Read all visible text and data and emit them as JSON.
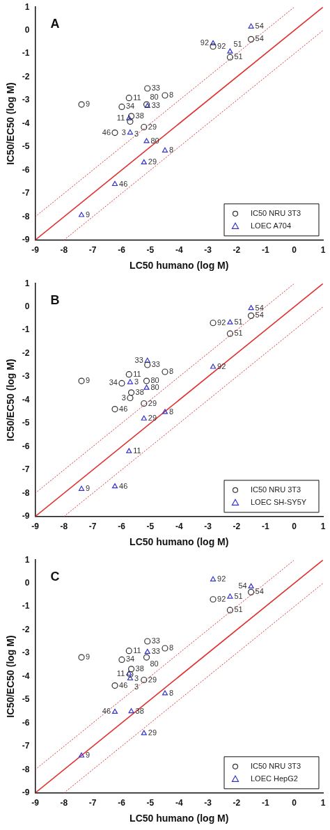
{
  "chart_data": [
    {
      "type": "scatter",
      "title": "A",
      "xlabel": "LC50 humano (log M)",
      "ylabel": "IC50/EC50 (log M)",
      "xlim": [
        -9,
        1
      ],
      "ylim": [
        -9,
        1
      ],
      "xticks": [
        -9,
        -8,
        -7,
        -6,
        -5,
        -4,
        -3,
        -2,
        -1,
        0,
        1
      ],
      "yticks": [
        -9,
        -8,
        -7,
        -6,
        -5,
        -4,
        -3,
        -2,
        -1,
        0,
        1
      ],
      "grid": false,
      "legend": "bottom right",
      "series": [
        {
          "name": "IC50 NRU 3T3",
          "color": "#333333",
          "marker": "circle",
          "x": [
            -7.39,
            -5.99,
            -5.74,
            -5.1,
            -4.49,
            -5.13,
            -5.66,
            -5.7,
            -5.22,
            -6.23,
            -2.82,
            -2.23,
            -1.5
          ],
          "values": [
            -3.18,
            -3.28,
            -2.9,
            -2.49,
            -2.79,
            -3.18,
            -3.68,
            -3.91,
            -4.15,
            -4.39,
            -0.69,
            -1.15,
            -0.38
          ]
        },
        {
          "name": "LOEC A704",
          "color": "#3333cc",
          "marker": "triangle",
          "x": [
            -1.5,
            -2.82,
            -2.23,
            -5.1,
            -5.74,
            -5.7,
            -5.13,
            -4.49,
            -5.22,
            -6.23,
            -7.39
          ],
          "values": [
            0.16,
            -0.56,
            -0.91,
            -3.25,
            -3.78,
            -4.39,
            -4.76,
            -5.16,
            -5.67,
            -6.6,
            -7.93
          ]
        },
        {
          "type": "line",
          "color": "#e03030",
          "marker": "none",
          "line_style": "solid",
          "x": [
            -9,
            1
          ],
          "values": [
            -9,
            1
          ]
        },
        {
          "type": "line",
          "color": "#e03030",
          "marker": "none",
          "line_style": "dotted",
          "x": [
            -9,
            0
          ],
          "values": [
            -8,
            1
          ]
        },
        {
          "type": "line",
          "color": "#e03030",
          "marker": "none",
          "line_style": "dotted",
          "x": [
            -8,
            1
          ],
          "values": [
            -9,
            0
          ]
        }
      ],
      "annotations": [
        {
          "text": "9",
          "x": -7.39,
          "y": -3.18
        },
        {
          "text": "34",
          "x": -5.99,
          "y": -3.28
        },
        {
          "text": "11",
          "x": -5.74,
          "y": -2.9
        },
        {
          "text": "33",
          "x": -5.1,
          "y": -2.49
        },
        {
          "text": "8",
          "x": -4.49,
          "y": -2.79
        },
        {
          "text": "80",
          "x": -5.13,
          "y": -3.18
        },
        {
          "text": "38",
          "x": -5.66,
          "y": -3.68
        },
        {
          "text": "3",
          "x": -5.7,
          "y": -3.91
        },
        {
          "text": "29",
          "x": -5.22,
          "y": -4.15
        },
        {
          "text": "46",
          "x": -6.23,
          "y": -4.39
        },
        {
          "text": "92",
          "x": -2.82,
          "y": -0.69
        },
        {
          "text": "51",
          "x": -2.23,
          "y": -1.15
        },
        {
          "text": "54",
          "x": -1.5,
          "y": -0.38
        },
        {
          "text": "54",
          "x": -1.5,
          "y": 0.16
        },
        {
          "text": "92",
          "x": -2.82,
          "y": -0.56
        },
        {
          "text": "51",
          "x": -2.23,
          "y": -0.91
        },
        {
          "text": "33",
          "x": -5.1,
          "y": -3.25
        },
        {
          "text": "11",
          "x": -5.74,
          "y": -3.78
        },
        {
          "text": "3",
          "x": -5.7,
          "y": -4.39
        },
        {
          "text": "80",
          "x": -5.13,
          "y": -4.76
        },
        {
          "text": "8",
          "x": -4.49,
          "y": -5.16
        },
        {
          "text": "29",
          "x": -5.22,
          "y": -5.67
        },
        {
          "text": "46",
          "x": -6.23,
          "y": -6.6
        },
        {
          "text": "9",
          "x": -7.39,
          "y": -7.93
        }
      ]
    },
    {
      "type": "scatter",
      "title": "B",
      "xlabel": "LC50 humano (log M)",
      "ylabel": "IC50/EC50 (log M)",
      "xlim": [
        -9,
        1
      ],
      "ylim": [
        -9,
        1
      ],
      "xticks": [
        -9,
        -8,
        -7,
        -6,
        -5,
        -4,
        -3,
        -2,
        -1,
        0,
        1
      ],
      "yticks": [
        -9,
        -8,
        -7,
        -6,
        -5,
        -4,
        -3,
        -2,
        -1,
        0,
        1
      ],
      "grid": false,
      "legend": "bottom right",
      "series": [
        {
          "name": "IC50 NRU 3T3",
          "color": "#333333",
          "marker": "circle",
          "x": [
            -7.39,
            -5.99,
            -5.74,
            -5.1,
            -4.49,
            -5.13,
            -5.66,
            -5.7,
            -5.22,
            -6.23,
            -2.82,
            -2.23,
            -1.5
          ],
          "values": [
            -3.18,
            -3.28,
            -2.9,
            -2.49,
            -2.79,
            -3.18,
            -3.68,
            -3.91,
            -4.15,
            -4.39,
            -0.69,
            -1.15,
            -0.38
          ]
        },
        {
          "name": "LOEC SH-SY5Y",
          "color": "#3333cc",
          "marker": "triangle",
          "x": [
            -1.5,
            -2.23,
            -2.82,
            -5.1,
            -5.7,
            -5.13,
            -4.49,
            -5.22,
            -5.74,
            -7.39,
            -6.23
          ],
          "values": [
            -0.06,
            -0.67,
            -2.58,
            -2.32,
            -3.24,
            -3.48,
            -4.52,
            -4.8,
            -6.2,
            -7.82,
            -7.71
          ]
        },
        {
          "type": "line",
          "color": "#e03030",
          "marker": "none",
          "line_style": "solid",
          "x": [
            -9,
            1
          ],
          "values": [
            -9,
            1
          ]
        },
        {
          "type": "line",
          "color": "#e03030",
          "marker": "none",
          "line_style": "dotted",
          "x": [
            -9,
            0
          ],
          "values": [
            -8,
            1
          ]
        },
        {
          "type": "line",
          "color": "#e03030",
          "marker": "none",
          "line_style": "dotted",
          "x": [
            -8,
            1
          ],
          "values": [
            -9,
            0
          ]
        }
      ],
      "annotations": [
        {
          "text": "9",
          "x": -7.39,
          "y": -3.18
        },
        {
          "text": "34",
          "x": -5.99,
          "y": -3.28
        },
        {
          "text": "11",
          "x": -5.74,
          "y": -2.9
        },
        {
          "text": "33",
          "x": -5.1,
          "y": -2.49
        },
        {
          "text": "8",
          "x": -4.49,
          "y": -2.79
        },
        {
          "text": "80",
          "x": -5.13,
          "y": -3.18
        },
        {
          "text": "38",
          "x": -5.66,
          "y": -3.68
        },
        {
          "text": "3",
          "x": -5.7,
          "y": -3.91
        },
        {
          "text": "29",
          "x": -5.22,
          "y": -4.15
        },
        {
          "text": "46",
          "x": -6.23,
          "y": -4.39
        },
        {
          "text": "92",
          "x": -2.82,
          "y": -0.69
        },
        {
          "text": "51",
          "x": -2.23,
          "y": -1.15
        },
        {
          "text": "54",
          "x": -1.5,
          "y": -0.38
        },
        {
          "text": "54",
          "x": -1.5,
          "y": -0.06
        },
        {
          "text": "51",
          "x": -2.23,
          "y": -0.67
        },
        {
          "text": "92",
          "x": -2.82,
          "y": -2.58
        },
        {
          "text": "33",
          "x": -5.1,
          "y": -2.32
        },
        {
          "text": "3",
          "x": -5.7,
          "y": -3.24
        },
        {
          "text": "80",
          "x": -5.13,
          "y": -3.48
        },
        {
          "text": "8",
          "x": -4.49,
          "y": -4.52
        },
        {
          "text": "29",
          "x": -5.22,
          "y": -4.8
        },
        {
          "text": "11",
          "x": -5.74,
          "y": -6.2
        },
        {
          "text": "9",
          "x": -7.39,
          "y": -7.82
        },
        {
          "text": "46",
          "x": -6.23,
          "y": -7.71
        }
      ]
    },
    {
      "type": "scatter",
      "title": "C",
      "xlabel": "LC50 humano (log M)",
      "ylabel": "IC50/EC50 (log M)",
      "xlim": [
        -9,
        1
      ],
      "ylim": [
        -9,
        1
      ],
      "xticks": [
        -9,
        -8,
        -7,
        -6,
        -5,
        -4,
        -3,
        -2,
        -1,
        0,
        1
      ],
      "yticks": [
        -9,
        -8,
        -7,
        -6,
        -5,
        -4,
        -3,
        -2,
        -1,
        0,
        1
      ],
      "grid": false,
      "legend": "bottom right",
      "series": [
        {
          "name": "IC50 NRU 3T3",
          "color": "#333333",
          "marker": "circle",
          "x": [
            -7.39,
            -5.99,
            -5.74,
            -5.1,
            -4.49,
            -5.13,
            -5.66,
            -5.7,
            -5.22,
            -6.23,
            -2.82,
            -2.23,
            -1.5
          ],
          "values": [
            -3.18,
            -3.28,
            -2.9,
            -2.49,
            -2.79,
            -3.18,
            -3.68,
            -3.91,
            -4.15,
            -4.39,
            -0.69,
            -1.15,
            -0.38
          ]
        },
        {
          "name": "LOEC HepG2",
          "color": "#3333cc",
          "marker": "triangle",
          "x": [
            -2.82,
            -1.5,
            -2.23,
            -5.1,
            -5.74,
            -5.7,
            -4.49,
            -6.23,
            -5.66,
            -5.22,
            -7.39
          ],
          "values": [
            0.16,
            -0.14,
            -0.58,
            -2.95,
            -3.88,
            -4.09,
            -4.73,
            -5.52,
            -5.5,
            -6.44,
            -7.4
          ]
        },
        {
          "type": "line",
          "color": "#e03030",
          "marker": "none",
          "line_style": "solid",
          "x": [
            -9,
            1
          ],
          "values": [
            -9,
            1
          ]
        },
        {
          "type": "line",
          "color": "#e03030",
          "marker": "none",
          "line_style": "dotted",
          "x": [
            -9,
            0
          ],
          "values": [
            -8,
            1
          ]
        },
        {
          "type": "line",
          "color": "#e03030",
          "marker": "none",
          "line_style": "dotted",
          "x": [
            -8,
            1
          ],
          "values": [
            -9,
            0
          ]
        }
      ],
      "annotations": [
        {
          "text": "9",
          "x": -7.39,
          "y": -3.18
        },
        {
          "text": "34",
          "x": -5.99,
          "y": -3.28
        },
        {
          "text": "11",
          "x": -5.74,
          "y": -2.9
        },
        {
          "text": "33",
          "x": -5.1,
          "y": -2.49
        },
        {
          "text": "8",
          "x": -4.49,
          "y": -2.79
        },
        {
          "text": "80",
          "x": -5.13,
          "y": -3.18
        },
        {
          "text": "38",
          "x": -5.66,
          "y": -3.68
        },
        {
          "text": "3",
          "x": -5.7,
          "y": -3.91
        },
        {
          "text": "29",
          "x": -5.22,
          "y": -4.15
        },
        {
          "text": "46",
          "x": -6.23,
          "y": -4.39
        },
        {
          "text": "92",
          "x": -2.82,
          "y": -0.69
        },
        {
          "text": "51",
          "x": -2.23,
          "y": -1.15
        },
        {
          "text": "54",
          "x": -1.5,
          "y": -0.38
        },
        {
          "text": "92",
          "x": -2.82,
          "y": 0.16
        },
        {
          "text": "54",
          "x": -1.5,
          "y": -0.14
        },
        {
          "text": "51",
          "x": -2.23,
          "y": -0.58
        },
        {
          "text": "33",
          "x": -5.1,
          "y": -2.95
        },
        {
          "text": "11",
          "x": -5.74,
          "y": -3.88
        },
        {
          "text": "3",
          "x": -5.7,
          "y": -4.09
        },
        {
          "text": "8",
          "x": -4.49,
          "y": -4.73
        },
        {
          "text": "46",
          "x": -6.23,
          "y": -5.52
        },
        {
          "text": "38",
          "x": -5.66,
          "y": -5.5
        },
        {
          "text": "29",
          "x": -5.22,
          "y": -6.44
        },
        {
          "text": "9",
          "x": -7.39,
          "y": -7.4
        }
      ]
    }
  ]
}
